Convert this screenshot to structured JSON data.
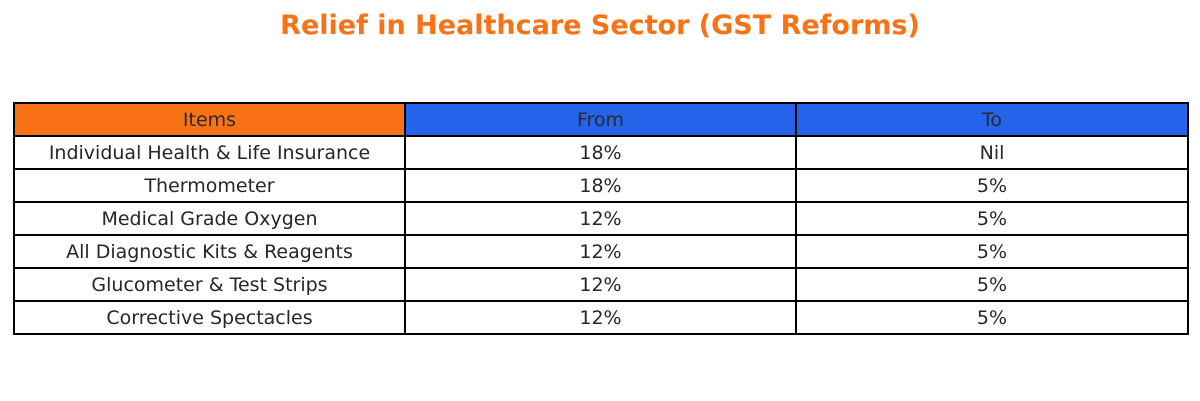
{
  "chart_data": {
    "type": "table",
    "title": "Relief in Healthcare Sector (GST Reforms)",
    "columns": [
      "Items",
      "From",
      "To"
    ],
    "rows": [
      [
        "Individual Health & Life Insurance",
        "18%",
        "Nil"
      ],
      [
        "Thermometer",
        "18%",
        "5%"
      ],
      [
        "Medical Grade Oxygen",
        "12%",
        "5%"
      ],
      [
        "All Diagnostic Kits & Reagents",
        "12%",
        "5%"
      ],
      [
        "Glucometer & Test Strips",
        "12%",
        "5%"
      ],
      [
        "Corrective Spectacles",
        "12%",
        "5%"
      ]
    ]
  },
  "colors": {
    "title": "#f97316",
    "header_items": "#f97316",
    "header_from": "#2563eb",
    "header_to": "#2563eb",
    "border": "#000000",
    "text": "#262626"
  }
}
